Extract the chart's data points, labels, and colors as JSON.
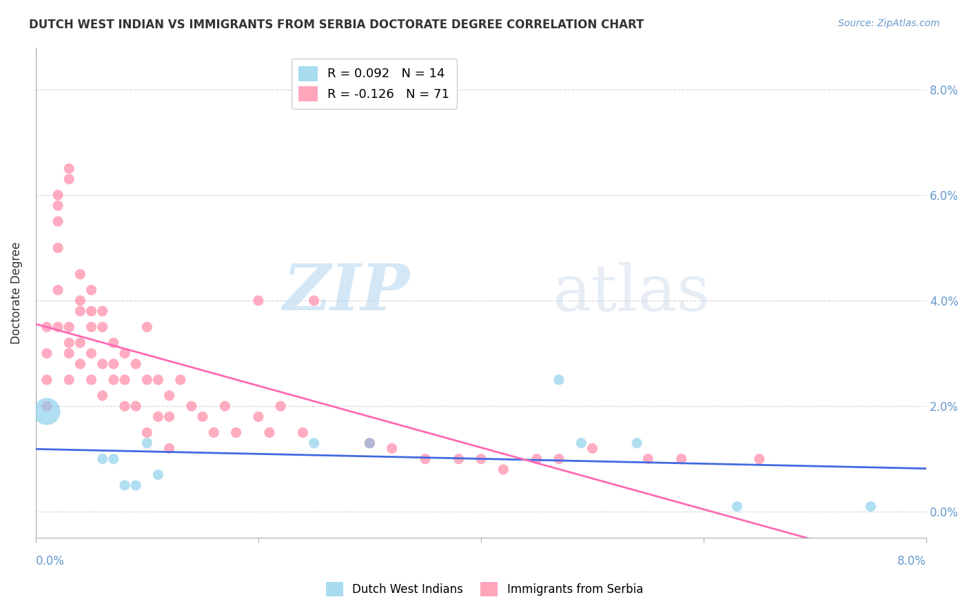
{
  "title": "DUTCH WEST INDIAN VS IMMIGRANTS FROM SERBIA DOCTORATE DEGREE CORRELATION CHART",
  "source": "Source: ZipAtlas.com",
  "ylabel": "Doctorate Degree",
  "watermark_zip": "ZIP",
  "watermark_atlas": "atlas",
  "legend_r1": "R = 0.092",
  "legend_n1": "N = 14",
  "legend_r2": "R = -0.126",
  "legend_n2": "N = 71",
  "blue_color": "#87CEEB",
  "pink_color": "#FF80A0",
  "blue_line_color": "#4169E1",
  "pink_line_color": "#FF69B4",
  "background_color": "#FFFFFF",
  "xlim": [
    0.0,
    0.08
  ],
  "ylim": [
    -0.005,
    0.088
  ],
  "dutch_x": [
    0.001,
    0.006,
    0.007,
    0.008,
    0.009,
    0.01,
    0.011,
    0.025,
    0.03,
    0.047,
    0.049,
    0.054,
    0.063,
    0.075
  ],
  "dutch_y": [
    0.019,
    0.01,
    0.01,
    0.005,
    0.005,
    0.013,
    0.007,
    0.013,
    0.013,
    0.025,
    0.013,
    0.013,
    0.001,
    0.001
  ],
  "dutch_size_large_idx": 0,
  "serbia_x": [
    0.001,
    0.001,
    0.001,
    0.001,
    0.002,
    0.002,
    0.002,
    0.002,
    0.002,
    0.002,
    0.003,
    0.003,
    0.003,
    0.003,
    0.003,
    0.003,
    0.004,
    0.004,
    0.004,
    0.004,
    0.004,
    0.005,
    0.005,
    0.005,
    0.005,
    0.005,
    0.006,
    0.006,
    0.006,
    0.006,
    0.007,
    0.007,
    0.007,
    0.008,
    0.008,
    0.008,
    0.009,
    0.009,
    0.01,
    0.01,
    0.01,
    0.011,
    0.011,
    0.012,
    0.012,
    0.012,
    0.013,
    0.014,
    0.015,
    0.016,
    0.017,
    0.018,
    0.02,
    0.02,
    0.021,
    0.022,
    0.024,
    0.025,
    0.03,
    0.03,
    0.032,
    0.035,
    0.038,
    0.04,
    0.042,
    0.045,
    0.047,
    0.05,
    0.055,
    0.058,
    0.065
  ],
  "serbia_y": [
    0.035,
    0.03,
    0.025,
    0.02,
    0.06,
    0.058,
    0.055,
    0.05,
    0.042,
    0.035,
    0.065,
    0.063,
    0.035,
    0.032,
    0.03,
    0.025,
    0.045,
    0.04,
    0.038,
    0.032,
    0.028,
    0.042,
    0.038,
    0.035,
    0.03,
    0.025,
    0.038,
    0.035,
    0.028,
    0.022,
    0.032,
    0.028,
    0.025,
    0.03,
    0.025,
    0.02,
    0.028,
    0.02,
    0.035,
    0.025,
    0.015,
    0.025,
    0.018,
    0.022,
    0.018,
    0.012,
    0.025,
    0.02,
    0.018,
    0.015,
    0.02,
    0.015,
    0.04,
    0.018,
    0.015,
    0.02,
    0.015,
    0.04,
    0.013,
    0.013,
    0.012,
    0.01,
    0.01,
    0.01,
    0.008,
    0.01,
    0.01,
    0.012,
    0.01,
    0.01,
    0.01
  ]
}
